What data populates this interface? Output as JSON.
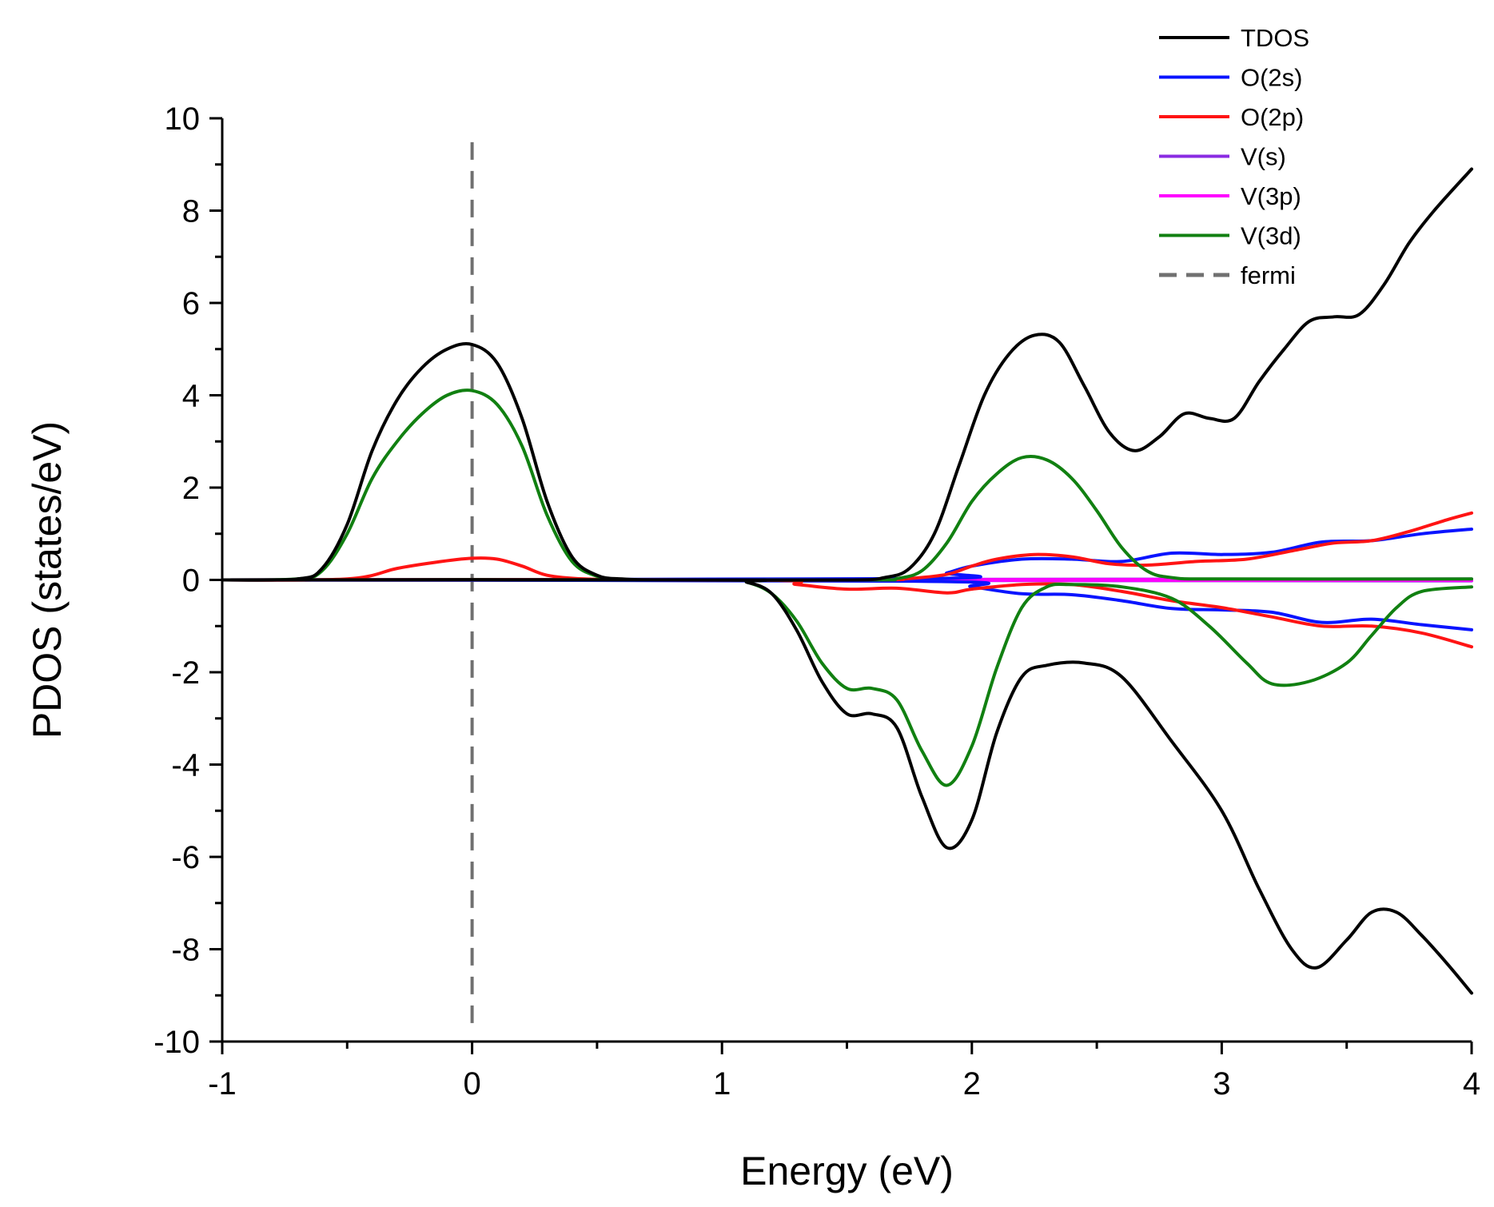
{
  "chart_data": {
    "type": "line",
    "title": "",
    "xlabel": "Energy (eV)",
    "ylabel": "PDOS (states/eV)",
    "xlim": [
      -1,
      4
    ],
    "ylim": [
      -10,
      10
    ],
    "xticks": [
      -1,
      0,
      1,
      2,
      3,
      4
    ],
    "xtick_labels": [
      "-1",
      "0",
      "1",
      "2",
      "3",
      "4"
    ],
    "yticks": [
      -10,
      -8,
      -6,
      -4,
      -2,
      0,
      2,
      4,
      6,
      8,
      10
    ],
    "ytick_labels": [
      "-10",
      "-8",
      "-6",
      "-4",
      "-2",
      "0",
      "2",
      "4",
      "6",
      "8",
      "10"
    ],
    "legend_position": "top-right",
    "grid": false,
    "fermi_level": 0,
    "series": [
      {
        "name": "TDOS",
        "color": "#000000",
        "dash": false,
        "up": [
          [
            -1,
            0
          ],
          [
            -0.7,
            0.02
          ],
          [
            -0.6,
            0.25
          ],
          [
            -0.5,
            1.2
          ],
          [
            -0.4,
            2.8
          ],
          [
            -0.3,
            3.9
          ],
          [
            -0.2,
            4.6
          ],
          [
            -0.1,
            5.0
          ],
          [
            0,
            5.1
          ],
          [
            0.1,
            4.7
          ],
          [
            0.2,
            3.5
          ],
          [
            0.3,
            1.7
          ],
          [
            0.4,
            0.5
          ],
          [
            0.5,
            0.1
          ],
          [
            0.6,
            0.02
          ],
          [
            0.8,
            0
          ],
          [
            1.5,
            0
          ],
          [
            1.65,
            0.05
          ],
          [
            1.75,
            0.25
          ],
          [
            1.85,
            1.0
          ],
          [
            1.95,
            2.5
          ],
          [
            2.05,
            4.0
          ],
          [
            2.15,
            4.9
          ],
          [
            2.25,
            5.3
          ],
          [
            2.35,
            5.15
          ],
          [
            2.45,
            4.2
          ],
          [
            2.55,
            3.2
          ],
          [
            2.65,
            2.8
          ],
          [
            2.75,
            3.1
          ],
          [
            2.85,
            3.6
          ],
          [
            2.95,
            3.5
          ],
          [
            3.05,
            3.5
          ],
          [
            3.15,
            4.3
          ],
          [
            3.25,
            5.0
          ],
          [
            3.35,
            5.6
          ],
          [
            3.45,
            5.7
          ],
          [
            3.55,
            5.75
          ],
          [
            3.65,
            6.4
          ],
          [
            3.75,
            7.3
          ],
          [
            3.85,
            8.0
          ],
          [
            4.0,
            8.9
          ]
        ],
        "down": [
          [
            -1,
            0
          ],
          [
            1.0,
            0
          ],
          [
            1.1,
            -0.05
          ],
          [
            1.2,
            -0.3
          ],
          [
            1.3,
            -1.1
          ],
          [
            1.4,
            -2.2
          ],
          [
            1.5,
            -2.9
          ],
          [
            1.6,
            -2.9
          ],
          [
            1.7,
            -3.2
          ],
          [
            1.8,
            -4.7
          ],
          [
            1.9,
            -5.8
          ],
          [
            2.0,
            -5.2
          ],
          [
            2.1,
            -3.3
          ],
          [
            2.2,
            -2.1
          ],
          [
            2.3,
            -1.85
          ],
          [
            2.45,
            -1.8
          ],
          [
            2.6,
            -2.1
          ],
          [
            2.8,
            -3.5
          ],
          [
            3.0,
            -5.0
          ],
          [
            3.15,
            -6.7
          ],
          [
            3.28,
            -8.0
          ],
          [
            3.38,
            -8.4
          ],
          [
            3.5,
            -7.8
          ],
          [
            3.6,
            -7.2
          ],
          [
            3.7,
            -7.2
          ],
          [
            3.8,
            -7.7
          ],
          [
            3.9,
            -8.3
          ],
          [
            4.0,
            -8.95
          ]
        ]
      },
      {
        "name": "O(2s)",
        "color": "#0a14ff",
        "dash": false,
        "up": [
          [
            -1,
            0
          ],
          [
            1.8,
            0.03
          ],
          [
            1.9,
            0.15
          ],
          [
            2.0,
            0.3
          ],
          [
            2.2,
            0.45
          ],
          [
            2.4,
            0.45
          ],
          [
            2.6,
            0.4
          ],
          [
            2.8,
            0.58
          ],
          [
            3.0,
            0.55
          ],
          [
            3.2,
            0.6
          ],
          [
            3.4,
            0.82
          ],
          [
            3.6,
            0.85
          ],
          [
            3.8,
            1.0
          ],
          [
            4.0,
            1.1
          ]
        ],
        "down": [
          [
            -1,
            0
          ],
          [
            1.8,
            -0.03
          ],
          [
            2.0,
            -0.15
          ],
          [
            2.2,
            -0.3
          ],
          [
            2.4,
            -0.32
          ],
          [
            2.6,
            -0.45
          ],
          [
            2.8,
            -0.62
          ],
          [
            3.0,
            -0.65
          ],
          [
            3.2,
            -0.7
          ],
          [
            3.4,
            -0.92
          ],
          [
            3.6,
            -0.85
          ],
          [
            3.8,
            -0.97
          ],
          [
            4.0,
            -1.08
          ]
        ]
      },
      {
        "name": "O(2p)",
        "color": "#ff1414",
        "dash": false,
        "up": [
          [
            -1,
            0
          ],
          [
            -0.5,
            0.02
          ],
          [
            -0.3,
            0.25
          ],
          [
            -0.15,
            0.38
          ],
          [
            0,
            0.47
          ],
          [
            0.1,
            0.45
          ],
          [
            0.2,
            0.3
          ],
          [
            0.3,
            0.1
          ],
          [
            0.45,
            0.02
          ],
          [
            0.7,
            0
          ],
          [
            1.6,
            0
          ],
          [
            1.75,
            0.03
          ],
          [
            1.9,
            0.12
          ],
          [
            2.0,
            0.3
          ],
          [
            2.1,
            0.45
          ],
          [
            2.25,
            0.55
          ],
          [
            2.4,
            0.5
          ],
          [
            2.55,
            0.35
          ],
          [
            2.7,
            0.32
          ],
          [
            2.9,
            0.4
          ],
          [
            3.1,
            0.45
          ],
          [
            3.3,
            0.65
          ],
          [
            3.45,
            0.8
          ],
          [
            3.6,
            0.85
          ],
          [
            3.75,
            1.05
          ],
          [
            3.9,
            1.3
          ],
          [
            4.0,
            1.45
          ]
        ],
        "down": [
          [
            -1,
            0
          ],
          [
            1.1,
            0
          ],
          [
            1.3,
            -0.1
          ],
          [
            1.5,
            -0.2
          ],
          [
            1.7,
            -0.18
          ],
          [
            1.9,
            -0.28
          ],
          [
            2.0,
            -0.2
          ],
          [
            2.2,
            -0.1
          ],
          [
            2.4,
            -0.1
          ],
          [
            2.6,
            -0.25
          ],
          [
            2.8,
            -0.45
          ],
          [
            3.0,
            -0.6
          ],
          [
            3.2,
            -0.8
          ],
          [
            3.4,
            -1.0
          ],
          [
            3.6,
            -1.0
          ],
          [
            3.8,
            -1.15
          ],
          [
            4.0,
            -1.45
          ]
        ]
      },
      {
        "name": "V(s)",
        "color": "#8a2be2",
        "dash": false,
        "up": [
          [
            -1,
            0
          ],
          [
            4.0,
            0.02
          ]
        ],
        "down": [
          [
            -1,
            0
          ],
          [
            4.0,
            -0.02
          ]
        ]
      },
      {
        "name": "V(3p)",
        "color": "#ff00ff",
        "dash": false,
        "up": [
          [
            -1,
            0
          ],
          [
            4.0,
            0.01
          ]
        ],
        "down": [
          [
            -1,
            0
          ],
          [
            4.0,
            -0.01
          ]
        ]
      },
      {
        "name": "V(3d)",
        "color": "#118011",
        "dash": false,
        "up": [
          [
            -1,
            0
          ],
          [
            -0.7,
            0.02
          ],
          [
            -0.6,
            0.2
          ],
          [
            -0.5,
            1.0
          ],
          [
            -0.4,
            2.2
          ],
          [
            -0.3,
            3.0
          ],
          [
            -0.2,
            3.6
          ],
          [
            -0.1,
            4.0
          ],
          [
            0,
            4.1
          ],
          [
            0.1,
            3.8
          ],
          [
            0.2,
            2.9
          ],
          [
            0.3,
            1.4
          ],
          [
            0.4,
            0.4
          ],
          [
            0.5,
            0.08
          ],
          [
            0.6,
            0.01
          ],
          [
            0.8,
            0
          ],
          [
            1.6,
            0
          ],
          [
            1.7,
            0.03
          ],
          [
            1.8,
            0.2
          ],
          [
            1.9,
            0.8
          ],
          [
            2.0,
            1.7
          ],
          [
            2.1,
            2.3
          ],
          [
            2.2,
            2.65
          ],
          [
            2.3,
            2.6
          ],
          [
            2.4,
            2.2
          ],
          [
            2.5,
            1.5
          ],
          [
            2.6,
            0.7
          ],
          [
            2.7,
            0.2
          ],
          [
            2.8,
            0.05
          ],
          [
            3.0,
            0.02
          ],
          [
            4.0,
            0.02
          ]
        ],
        "down": [
          [
            -1,
            0
          ],
          [
            1.0,
            0
          ],
          [
            1.1,
            -0.05
          ],
          [
            1.2,
            -0.3
          ],
          [
            1.3,
            -0.9
          ],
          [
            1.4,
            -1.8
          ],
          [
            1.5,
            -2.35
          ],
          [
            1.6,
            -2.35
          ],
          [
            1.7,
            -2.6
          ],
          [
            1.8,
            -3.7
          ],
          [
            1.9,
            -4.45
          ],
          [
            2.0,
            -3.6
          ],
          [
            2.1,
            -1.9
          ],
          [
            2.2,
            -0.6
          ],
          [
            2.3,
            -0.15
          ],
          [
            2.4,
            -0.1
          ],
          [
            2.6,
            -0.15
          ],
          [
            2.8,
            -0.4
          ],
          [
            2.95,
            -1.0
          ],
          [
            3.1,
            -1.8
          ],
          [
            3.2,
            -2.25
          ],
          [
            3.35,
            -2.2
          ],
          [
            3.5,
            -1.8
          ],
          [
            3.6,
            -1.2
          ],
          [
            3.7,
            -0.6
          ],
          [
            3.8,
            -0.25
          ],
          [
            4.0,
            -0.15
          ]
        ]
      },
      {
        "name": "fermi",
        "color": "#707070",
        "dash": true,
        "x": 0,
        "y_from": -9.6,
        "y_to": 9.6
      }
    ]
  }
}
